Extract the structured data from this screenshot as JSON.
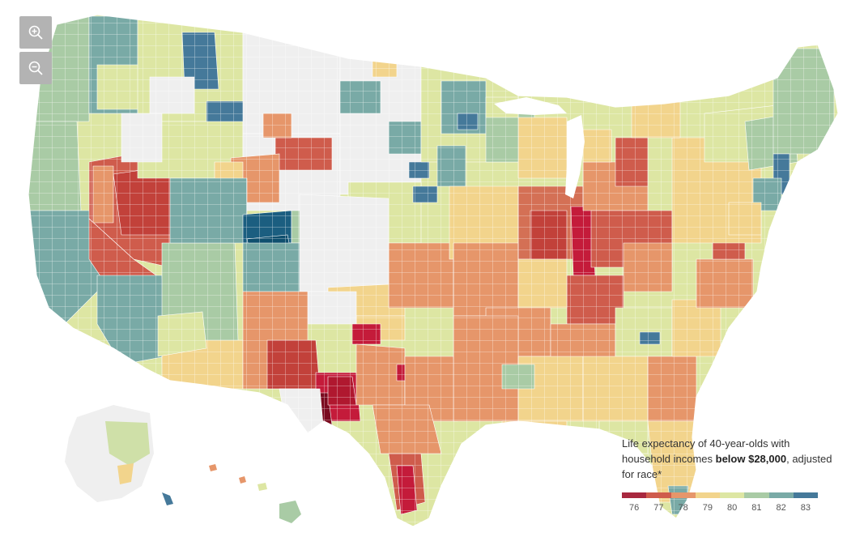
{
  "controls": {
    "zoom_in_icon": "zoom-in-magnifier-plus",
    "zoom_out_icon": "zoom-out-magnifier-minus"
  },
  "legend": {
    "title_part1": "Life expectancy of 40-year-olds with household incomes ",
    "title_bold": "below $28,000",
    "title_part2": ", adjusted for race*",
    "ticks": [
      "76",
      "77",
      "78",
      "79",
      "80",
      "81",
      "82",
      "83"
    ],
    "colors": [
      "#a8283f",
      "#cf5c4c",
      "#e6966a",
      "#f2d48c",
      "#dde6a3",
      "#a9cba5",
      "#79aaa6",
      "#45799a"
    ]
  },
  "map_colors": {
    "no_data": "#efefef",
    "darkest_low": "#7a0a1f",
    "deep_red": "#c41b3a",
    "darkest_high": "#0f4f6e"
  }
}
